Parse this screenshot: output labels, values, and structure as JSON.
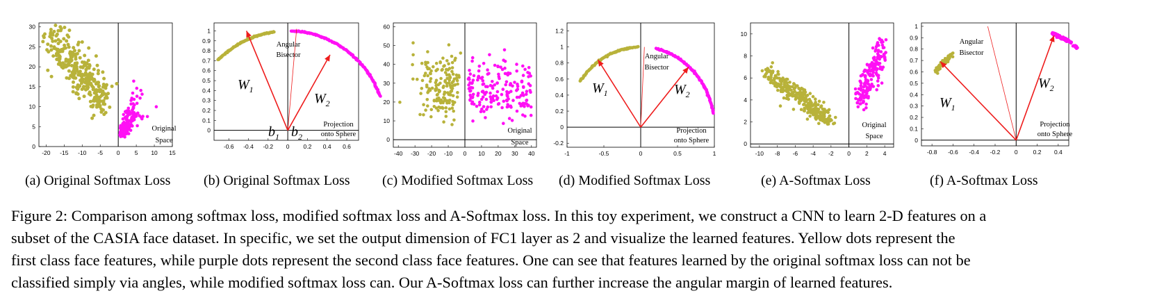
{
  "figure": {
    "colors": {
      "class1": "#b8b23a",
      "class2": "#ff10f5",
      "arrow": "#ee1c1c",
      "axis": "#000000"
    },
    "subcaptions": [
      "(a) Original Softmax Loss",
      "(b) Original Softmax Loss",
      "(c) Modified Softmax Loss",
      "(d) Modified Softmax Loss",
      "(e) A-Softmax Loss",
      "(f) A-Softmax Loss"
    ],
    "caption_lines": [
      "Figure 2: Comparison among softmax loss, modified softmax loss and A-Softmax loss. In this toy experiment, we construct a CNN to learn 2-D features on a",
      "subset of the CASIA face dataset. In specific, we set the output dimension of FC1 layer as 2 and visualize the learned features. Yellow dots represent the",
      "first class face features, while purple dots represent the second class face features. One can see that features learned by the original softmax loss can not be",
      "classified simply via angles, while modified softmax loss can. Our A-Softmax loss can further increase the angular margin of learned features."
    ]
  },
  "chart_data": [
    {
      "type": "scatter",
      "panel": "a",
      "xlim": [
        -22,
        15
      ],
      "ylim": [
        0,
        31
      ],
      "xticks": [
        -20,
        -15,
        -10,
        -5,
        0,
        5,
        10,
        15
      ],
      "yticks": [
        0,
        5,
        10,
        15,
        20,
        25,
        30
      ],
      "annotations": [
        "Original",
        "Space"
      ],
      "series": [
        {
          "class": "class1",
          "shape": "elongated cloud",
          "x_range": [
            -20,
            -2
          ],
          "y_range": [
            6,
            30
          ],
          "center": [
            -10,
            17
          ]
        },
        {
          "class": "class2",
          "shape": "wedge near origin",
          "x_range": [
            -1,
            10
          ],
          "y_range": [
            1,
            16
          ],
          "center": [
            3,
            6
          ]
        }
      ]
    },
    {
      "type": "scatter",
      "panel": "b",
      "xlim": [
        -0.75,
        0.72
      ],
      "ylim": [
        -0.1,
        1.08
      ],
      "xticks": [
        -0.6,
        -0.4,
        -0.2,
        0,
        0.2,
        0.4,
        0.6
      ],
      "yticks": [
        0,
        0.1,
        0.2,
        0.3,
        0.4,
        0.5,
        0.6,
        0.7,
        0.8,
        0.9,
        1
      ],
      "labels": {
        "w1": "W",
        "w1_sub": "1",
        "w2": "W",
        "w2_sub": "2",
        "b1": "b",
        "b1_sub": "1",
        "b2": "b",
        "b2_sub": "2"
      },
      "annotations": [
        "Angular",
        "Bisector",
        "Projection",
        "onto Sphere"
      ],
      "arcs": [
        {
          "class": "class1",
          "angle_deg_range": [
            98,
            135
          ]
        },
        {
          "class": "class2",
          "angle_deg_range": [
            20,
            88
          ]
        }
      ],
      "vectors": [
        {
          "name": "W1",
          "end": [
            -0.42,
            1.0
          ]
        },
        {
          "name": "W2",
          "end": [
            0.43,
            0.76
          ]
        }
      ],
      "bisector_end": [
        0.09,
        1.02
      ]
    },
    {
      "type": "scatter",
      "panel": "c",
      "xlim": [
        -43,
        43
      ],
      "ylim": [
        -4,
        62
      ],
      "xticks": [
        -40,
        -30,
        -20,
        -10,
        0,
        10,
        20,
        30,
        40
      ],
      "yticks": [
        0,
        10,
        20,
        30,
        40,
        50,
        60
      ],
      "annotations": [
        "Original",
        "Space"
      ],
      "series": [
        {
          "class": "class1",
          "x_range": [
            -40,
            -2
          ],
          "y_range": [
            10,
            50
          ]
        },
        {
          "class": "class2",
          "x_range": [
            2,
            40
          ],
          "y_range": [
            8,
            45
          ]
        }
      ]
    },
    {
      "type": "scatter",
      "panel": "d",
      "xlim": [
        -1.0,
        1.0
      ],
      "ylim": [
        -0.25,
        1.3
      ],
      "xticks": [
        -1,
        -0.5,
        0,
        0.5,
        1
      ],
      "yticks": [
        -0.2,
        0,
        0.2,
        0.4,
        0.6,
        0.8,
        1,
        1.2
      ],
      "labels": {
        "w1": "W",
        "w1_sub": "1",
        "w2": "W",
        "w2_sub": "2"
      },
      "annotations": [
        "Angular",
        "Bisector",
        "Projection",
        "onto Sphere"
      ],
      "arcs": [
        {
          "class": "class1",
          "angle_deg_range": [
            92,
            145
          ]
        },
        {
          "class": "class2",
          "angle_deg_range": [
            10,
            78
          ]
        }
      ],
      "vectors": [
        {
          "name": "W1",
          "end": [
            -0.58,
            0.84
          ]
        },
        {
          "name": "W2",
          "end": [
            0.65,
            0.75
          ]
        }
      ],
      "bisector_end": [
        0.05,
        1.0
      ]
    },
    {
      "type": "scatter",
      "panel": "e",
      "xlim": [
        -11,
        5
      ],
      "ylim": [
        -0.3,
        11
      ],
      "xticks": [
        -10,
        -8,
        -6,
        -4,
        -2,
        0,
        2,
        4
      ],
      "yticks": [
        0,
        2,
        4,
        6,
        8,
        10
      ],
      "annotations": [
        "Original",
        "Space"
      ],
      "series": [
        {
          "class": "class1",
          "x_range": [
            -10,
            -2
          ],
          "y_range": [
            2,
            8.5
          ]
        },
        {
          "class": "class2",
          "x_range": [
            0.8,
            4.2
          ],
          "y_range": [
            3.5,
            9.5
          ]
        }
      ]
    },
    {
      "type": "scatter",
      "panel": "f",
      "xlim": [
        -0.9,
        0.5
      ],
      "ylim": [
        -0.05,
        1.03
      ],
      "xticks": [
        -0.8,
        -0.6,
        -0.4,
        -0.2,
        0,
        0.2,
        0.4
      ],
      "yticks": [
        0,
        0.1,
        0.2,
        0.3,
        0.4,
        0.5,
        0.6,
        0.7,
        0.8,
        0.9,
        1
      ],
      "labels": {
        "w1": "W",
        "w1_sub": "1",
        "w2": "W",
        "w2_sub": "2"
      },
      "annotations": [
        "Angular",
        "Bisector",
        "Projection",
        "onto Sphere"
      ],
      "arcs": [
        {
          "class": "class1",
          "angle_deg_range": [
            133,
            145
          ]
        },
        {
          "class": "class2",
          "angle_deg_range": [
            60,
            80
          ]
        }
      ],
      "vectors": [
        {
          "name": "W1",
          "end": [
            -0.72,
            0.69
          ]
        },
        {
          "name": "W2",
          "end": [
            0.36,
            0.92
          ]
        }
      ],
      "bisector_end": [
        -0.27,
        1.0
      ]
    }
  ]
}
